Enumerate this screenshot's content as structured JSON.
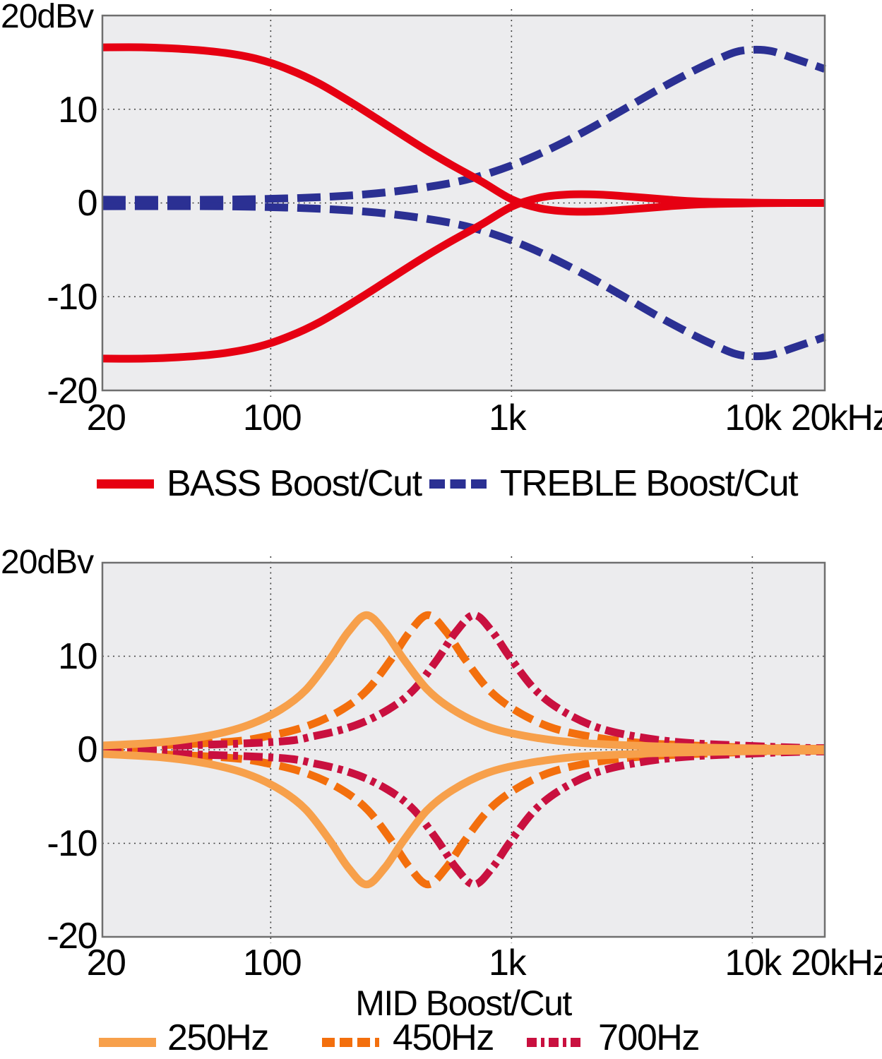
{
  "styles": {
    "plot_bg": "#ececee",
    "grid_color": "#3f3f3f",
    "border_color": "#6f6f6f",
    "text_color": "#000000",
    "bass_red": "#e60012",
    "treble_navy": "#2b3093",
    "mid_250_orange": "#f7a04b",
    "mid_450_orange": "#f36f0d",
    "mid_700_crimson": "#c9103f"
  },
  "chart_data": [
    {
      "type": "line",
      "title": "",
      "unit_label": "20dBv",
      "x_scale": "log",
      "x_range_hz": [
        20,
        20000
      ],
      "y_range_db": [
        -20,
        20
      ],
      "x_axis": {
        "ticks": [
          "20",
          "100",
          "1k",
          "10k",
          "20kHz"
        ],
        "tick_values_hz": [
          20,
          100,
          1000,
          10000,
          20000
        ],
        "gridlines_hz": [
          100,
          1000,
          10000
        ]
      },
      "y_axis": {
        "ticks": [
          "10",
          "0",
          "-10",
          "-20"
        ],
        "tick_values_db": [
          10,
          0,
          -10,
          -20
        ],
        "gridlines_db": [
          10,
          0,
          -10
        ]
      },
      "legend": [
        {
          "label": "BASS Boost/Cut",
          "color": "#e60012",
          "swatch_dash": null
        },
        {
          "label": "TREBLE Boost/Cut",
          "color": "#2b3093",
          "swatch_dash": "22 7.5"
        }
      ],
      "series": [
        {
          "name": "treble-boost",
          "color": "#2b3093",
          "style": "dashed",
          "dash": "33 13",
          "points_hz_db": [
            [
              20,
              0.35
            ],
            [
              60,
              0.35
            ],
            [
              120,
              0.5
            ],
            [
              200,
              0.75
            ],
            [
              320,
              1.2
            ],
            [
              500,
              1.9
            ],
            [
              700,
              2.7
            ],
            [
              1000,
              4.0
            ],
            [
              1400,
              5.6
            ],
            [
              2000,
              7.6
            ],
            [
              2800,
              9.7
            ],
            [
              4000,
              12.0
            ],
            [
              5500,
              13.9
            ],
            [
              7000,
              15.2
            ],
            [
              8500,
              16.1
            ],
            [
              10000,
              16.35
            ],
            [
              12000,
              16.2
            ],
            [
              15000,
              15.4
            ],
            [
              20000,
              14.3
            ]
          ]
        },
        {
          "name": "treble-cut",
          "color": "#2b3093",
          "style": "dashed",
          "dash": "33 13",
          "points_hz_db": [
            [
              20,
              -0.35
            ],
            [
              60,
              -0.35
            ],
            [
              120,
              -0.5
            ],
            [
              200,
              -0.75
            ],
            [
              320,
              -1.2
            ],
            [
              500,
              -1.9
            ],
            [
              700,
              -2.7
            ],
            [
              1000,
              -4.0
            ],
            [
              1400,
              -5.6
            ],
            [
              2000,
              -7.6
            ],
            [
              2800,
              -9.7
            ],
            [
              4000,
              -12.0
            ],
            [
              5500,
              -13.9
            ],
            [
              7000,
              -15.2
            ],
            [
              8500,
              -16.1
            ],
            [
              10000,
              -16.35
            ],
            [
              12000,
              -16.2
            ],
            [
              15000,
              -15.4
            ],
            [
              20000,
              -14.3
            ]
          ]
        },
        {
          "name": "bass-boost",
          "color": "#e60012",
          "style": "solid",
          "dash": null,
          "points_hz_db": [
            [
              20,
              16.6
            ],
            [
              30,
              16.6
            ],
            [
              45,
              16.4
            ],
            [
              65,
              16.0
            ],
            [
              90,
              15.3
            ],
            [
              120,
              14.2
            ],
            [
              160,
              12.7
            ],
            [
              220,
              10.6
            ],
            [
              300,
              8.4
            ],
            [
              420,
              6.0
            ],
            [
              560,
              4.1
            ],
            [
              750,
              2.3
            ],
            [
              1000,
              0.4
            ],
            [
              1300,
              -0.55
            ],
            [
              1700,
              -0.9
            ],
            [
              2300,
              -0.9
            ],
            [
              3200,
              -0.65
            ],
            [
              4500,
              -0.35
            ],
            [
              6000,
              -0.15
            ],
            [
              9000,
              -0.05
            ],
            [
              14000,
              0
            ],
            [
              20000,
              0
            ]
          ]
        },
        {
          "name": "bass-cut",
          "color": "#e60012",
          "style": "solid",
          "dash": null,
          "points_hz_db": [
            [
              20,
              -16.6
            ],
            [
              30,
              -16.6
            ],
            [
              45,
              -16.4
            ],
            [
              65,
              -16.0
            ],
            [
              90,
              -15.3
            ],
            [
              120,
              -14.2
            ],
            [
              160,
              -12.7
            ],
            [
              220,
              -10.6
            ],
            [
              300,
              -8.4
            ],
            [
              420,
              -6.0
            ],
            [
              560,
              -4.1
            ],
            [
              750,
              -2.3
            ],
            [
              1000,
              -0.4
            ],
            [
              1300,
              0.55
            ],
            [
              1700,
              0.9
            ],
            [
              2300,
              0.9
            ],
            [
              3200,
              0.65
            ],
            [
              4500,
              0.35
            ],
            [
              6000,
              0.15
            ],
            [
              9000,
              0.05
            ],
            [
              14000,
              0
            ],
            [
              20000,
              0
            ]
          ]
        }
      ]
    },
    {
      "type": "line",
      "title": "",
      "unit_label": "20dBv",
      "xlabel": "MID Boost/Cut",
      "x_scale": "log",
      "x_range_hz": [
        20,
        20000
      ],
      "y_range_db": [
        -20,
        20
      ],
      "x_axis": {
        "ticks": [
          "20",
          "100",
          "1k",
          "10k",
          "20kHz"
        ],
        "tick_values_hz": [
          20,
          100,
          1000,
          10000,
          20000
        ],
        "gridlines_hz": [
          100,
          1000,
          10000
        ]
      },
      "y_axis": {
        "ticks": [
          "10",
          "0",
          "-10",
          "-20"
        ],
        "tick_values_db": [
          10,
          0,
          -10,
          -20
        ],
        "gridlines_db": [
          10,
          0,
          -10
        ]
      },
      "legend": [
        {
          "label": "250Hz",
          "color": "#f7a04b",
          "swatch_dash": null
        },
        {
          "label": "450Hz",
          "color": "#f36f0d",
          "swatch_dash": "18 7"
        },
        {
          "label": "700Hz",
          "color": "#c9103f",
          "swatch_dash": "14 6 5 6"
        }
      ],
      "series": [
        {
          "name": "mid-450-boost",
          "color": "#f36f0d",
          "style": "dashed",
          "dash": "30 12",
          "points_hz_db": [
            [
              20,
              0.25
            ],
            [
              63,
              0.8
            ],
            [
              99,
              1.5
            ],
            [
              144,
              2.6
            ],
            [
              198,
              4.3
            ],
            [
              252,
              6.4
            ],
            [
              315,
              9.6
            ],
            [
              378,
              12.6
            ],
            [
              450,
              14.4
            ],
            [
              536,
              12.6
            ],
            [
              636,
              9.8
            ],
            [
              800,
              6.5
            ],
            [
              1025,
              4.3
            ],
            [
              1420,
              2.5
            ],
            [
              2030,
              1.5
            ],
            [
              3220,
              0.8
            ],
            [
              5760,
              0.45
            ],
            [
              10800,
              0.2
            ],
            [
              20000,
              0.1
            ]
          ]
        },
        {
          "name": "mid-450-cut",
          "color": "#f36f0d",
          "style": "dashed",
          "dash": "30 12",
          "points_hz_db": [
            [
              20,
              -0.25
            ],
            [
              63,
              -0.8
            ],
            [
              99,
              -1.5
            ],
            [
              144,
              -2.6
            ],
            [
              198,
              -4.3
            ],
            [
              252,
              -6.4
            ],
            [
              315,
              -9.6
            ],
            [
              378,
              -12.6
            ],
            [
              450,
              -14.4
            ],
            [
              536,
              -12.6
            ],
            [
              636,
              -9.8
            ],
            [
              800,
              -6.5
            ],
            [
              1025,
              -4.3
            ],
            [
              1420,
              -2.5
            ],
            [
              2030,
              -1.5
            ],
            [
              3220,
              -0.8
            ],
            [
              5760,
              -0.45
            ],
            [
              10800,
              -0.2
            ],
            [
              20000,
              -0.1
            ]
          ]
        },
        {
          "name": "mid-700-boost",
          "color": "#c9103f",
          "style": "dashdot",
          "dash": "27 8 7 8",
          "points_hz_db": [
            [
              20,
              0.2
            ],
            [
              98,
              0.8
            ],
            [
              154,
              1.5
            ],
            [
              224,
              2.6
            ],
            [
              308,
              4.3
            ],
            [
              392,
              6.4
            ],
            [
              490,
              9.6
            ],
            [
              588,
              12.6
            ],
            [
              700,
              14.4
            ],
            [
              833,
              12.6
            ],
            [
              990,
              9.8
            ],
            [
              1245,
              6.5
            ],
            [
              1594,
              4.3
            ],
            [
              2210,
              2.5
            ],
            [
              3150,
              1.5
            ],
            [
              5010,
              0.8
            ],
            [
              8960,
              0.45
            ],
            [
              16800,
              0.2
            ],
            [
              20000,
              0.18
            ]
          ]
        },
        {
          "name": "mid-700-cut",
          "color": "#c9103f",
          "style": "dashdot",
          "dash": "27 8 7 8",
          "points_hz_db": [
            [
              20,
              -0.2
            ],
            [
              98,
              -0.8
            ],
            [
              154,
              -1.5
            ],
            [
              224,
              -2.6
            ],
            [
              308,
              -4.3
            ],
            [
              392,
              -6.4
            ],
            [
              490,
              -9.6
            ],
            [
              588,
              -12.6
            ],
            [
              700,
              -14.4
            ],
            [
              833,
              -12.6
            ],
            [
              990,
              -9.8
            ],
            [
              1245,
              -6.5
            ],
            [
              1594,
              -4.3
            ],
            [
              2210,
              -2.5
            ],
            [
              3150,
              -1.5
            ],
            [
              5010,
              -0.8
            ],
            [
              8960,
              -0.45
            ],
            [
              16800,
              -0.2
            ],
            [
              20000,
              -0.18
            ]
          ]
        },
        {
          "name": "mid-250-boost",
          "color": "#f7a04b",
          "style": "solid",
          "dash": null,
          "points_hz_db": [
            [
              20,
              0.45
            ],
            [
              35,
              0.8
            ],
            [
              55,
              1.5
            ],
            [
              80,
              2.6
            ],
            [
              110,
              4.3
            ],
            [
              140,
              6.4
            ],
            [
              175,
              9.6
            ],
            [
              210,
              12.6
            ],
            [
              250,
              14.4
            ],
            [
              298,
              12.6
            ],
            [
              354,
              9.8
            ],
            [
              445,
              6.5
            ],
            [
              570,
              4.3
            ],
            [
              790,
              2.5
            ],
            [
              1130,
              1.5
            ],
            [
              1790,
              0.8
            ],
            [
              3200,
              0.45
            ],
            [
              6000,
              0.25
            ],
            [
              12000,
              0.12
            ],
            [
              20000,
              0.08
            ]
          ]
        },
        {
          "name": "mid-250-cut",
          "color": "#f7a04b",
          "style": "solid",
          "dash": null,
          "points_hz_db": [
            [
              20,
              -0.45
            ],
            [
              35,
              -0.8
            ],
            [
              55,
              -1.5
            ],
            [
              80,
              -2.6
            ],
            [
              110,
              -4.3
            ],
            [
              140,
              -6.4
            ],
            [
              175,
              -9.6
            ],
            [
              210,
              -12.6
            ],
            [
              250,
              -14.4
            ],
            [
              298,
              -12.6
            ],
            [
              354,
              -9.8
            ],
            [
              445,
              -6.5
            ],
            [
              570,
              -4.3
            ],
            [
              790,
              -2.5
            ],
            [
              1130,
              -1.5
            ],
            [
              1790,
              -0.8
            ],
            [
              3200,
              -0.45
            ],
            [
              6000,
              -0.25
            ],
            [
              12000,
              -0.12
            ],
            [
              20000,
              -0.08
            ]
          ]
        }
      ]
    }
  ]
}
